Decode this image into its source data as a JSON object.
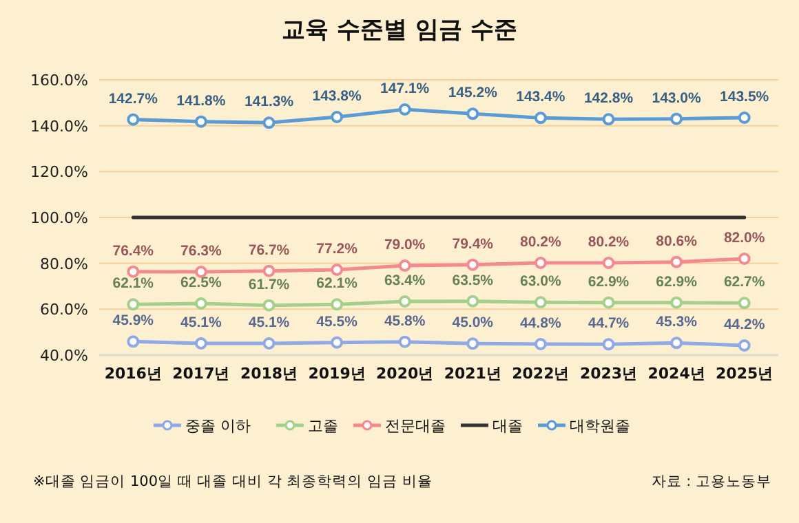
{
  "chart_data": {
    "type": "line",
    "title": "교육 수준별 임금 수준",
    "categories": [
      "2016년",
      "2017년",
      "2018년",
      "2019년",
      "2020년",
      "2021년",
      "2022년",
      "2023년",
      "2024년",
      "2025년"
    ],
    "series": [
      {
        "name": "중졸 이하",
        "color": "#8fa8e8",
        "values": [
          45.9,
          45.1,
          45.1,
          45.5,
          45.8,
          45.0,
          44.8,
          44.7,
          45.3,
          44.2
        ],
        "value_labels": [
          "45.9%",
          "45.1%",
          "45.1%",
          "45.5%",
          "45.8%",
          "45.0%",
          "44.8%",
          "44.7%",
          "45.3%",
          "44.2%"
        ]
      },
      {
        "name": "고졸",
        "color": "#a4d08c",
        "values": [
          62.1,
          62.5,
          61.7,
          62.1,
          63.4,
          63.5,
          63.0,
          62.9,
          62.9,
          62.7
        ],
        "value_labels": [
          "62.1%",
          "62.5%",
          "61.7%",
          "62.1%",
          "63.4%",
          "63.5%",
          "63.0%",
          "62.9%",
          "62.9%",
          "62.7%"
        ]
      },
      {
        "name": "전문대졸",
        "color": "#f48a8f",
        "values": [
          76.4,
          76.3,
          76.7,
          77.2,
          79.0,
          79.4,
          80.2,
          80.2,
          80.6,
          82.0
        ],
        "value_labels": [
          "76.4%",
          "76.3%",
          "76.7%",
          "77.2%",
          "79.0%",
          "79.4%",
          "80.2%",
          "80.2%",
          "80.6%",
          "82.0%"
        ]
      },
      {
        "name": "대졸",
        "color": "#333333",
        "marker": "none",
        "values": [
          100,
          100,
          100,
          100,
          100,
          100,
          100,
          100,
          100,
          100
        ]
      },
      {
        "name": "대학원졸",
        "color": "#5b9bd5",
        "values": [
          142.7,
          141.8,
          141.3,
          143.8,
          147.1,
          145.2,
          143.4,
          142.8,
          143.0,
          143.5
        ],
        "value_labels": [
          "142.7%",
          "141.8%",
          "141.3%",
          "143.8%",
          "147.1%",
          "145.2%",
          "143.4%",
          "142.8%",
          "143.0%",
          "143.5%"
        ]
      }
    ],
    "ylim": [
      40,
      160
    ],
    "yticks": [
      {
        "value": 40,
        "label": "40.0%"
      },
      {
        "value": 60,
        "label": "60.0%"
      },
      {
        "value": 80,
        "label": "80.0%"
      },
      {
        "value": 100,
        "label": "100.0%"
      },
      {
        "value": 120,
        "label": "120.0%"
      },
      {
        "value": 140,
        "label": "140.0%"
      },
      {
        "value": 160,
        "label": "160.0%"
      }
    ],
    "grid": "y",
    "legend": "bottom",
    "marker": "circle",
    "annotations": [
      "※대졸 임금이 100일 때 대졸 대비 각 최종학력의 임금 비율",
      "자료 : 고용노동부"
    ]
  }
}
